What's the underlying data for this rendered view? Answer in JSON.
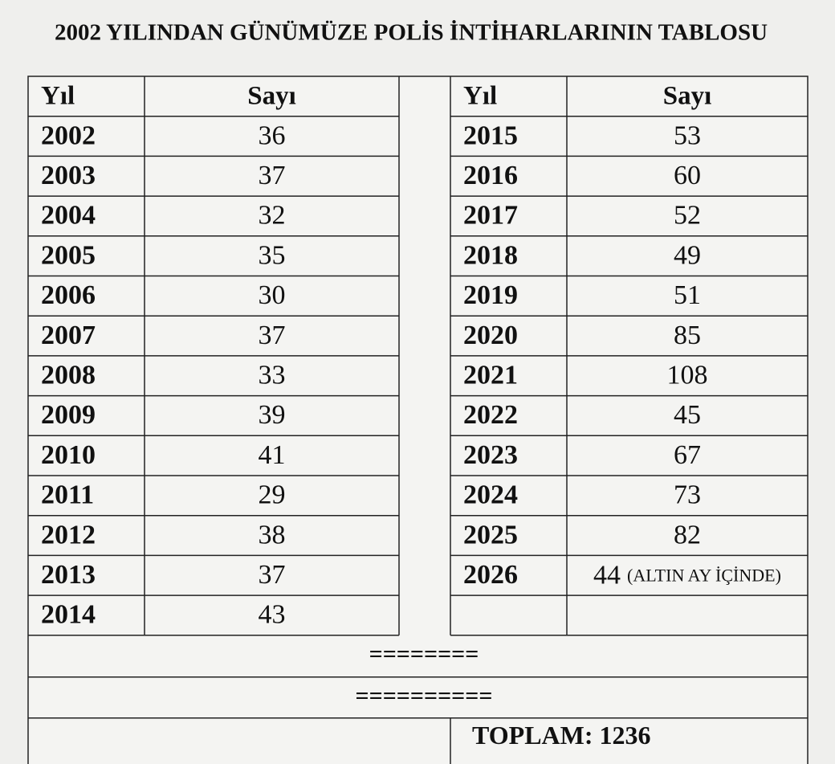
{
  "title": "2002 YILINDAN GÜNÜMÜZE POLİS İNTİHARLARININ TABLOSU",
  "left_table": {
    "headers": [
      "Yıl",
      "Sayı"
    ],
    "rows": [
      {
        "year": 2002,
        "count": 36
      },
      {
        "year": 2003,
        "count": 37
      },
      {
        "year": 2004,
        "count": 32
      },
      {
        "year": 2005,
        "count": 35
      },
      {
        "year": 2006,
        "count": 30
      },
      {
        "year": 2007,
        "count": 37
      },
      {
        "year": 2008,
        "count": 33
      },
      {
        "year": 2009,
        "count": 39
      },
      {
        "year": 2010,
        "count": 41
      },
      {
        "year": 2011,
        "count": 29
      },
      {
        "year": 2012,
        "count": 38
      },
      {
        "year": 2013,
        "count": 37
      },
      {
        "year": 2014,
        "count": 43
      }
    ]
  },
  "right_table": {
    "headers": [
      "Yıl",
      "Sayı"
    ],
    "rows": [
      {
        "year": 2015,
        "count": 53
      },
      {
        "year": 2016,
        "count": 60
      },
      {
        "year": 2017,
        "count": 52
      },
      {
        "year": 2018,
        "count": 49
      },
      {
        "year": 2019,
        "count": 51
      },
      {
        "year": 2020,
        "count": 85
      },
      {
        "year": 2021,
        "count": 108
      },
      {
        "year": 2022,
        "count": 45
      },
      {
        "year": 2023,
        "count": 67
      },
      {
        "year": 2024,
        "count": 73
      },
      {
        "year": 2025,
        "count": 82
      },
      {
        "year": 2026,
        "count": 44,
        "note": "(ALTIN AY İÇİNDE)"
      }
    ]
  },
  "footer": {
    "separators": [
      "========",
      "=========="
    ],
    "total": "TOPLAM: 1236"
  }
}
